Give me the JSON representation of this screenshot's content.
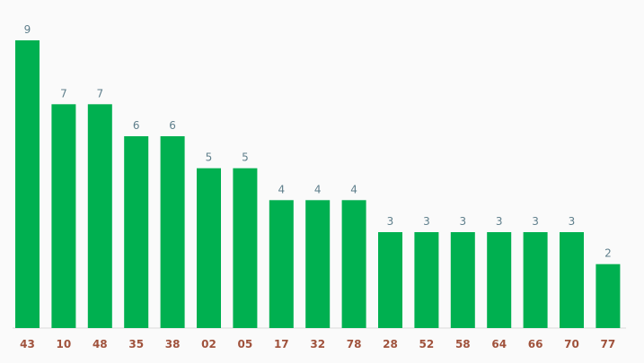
{
  "chart_data": {
    "type": "bar",
    "categories": [
      "43",
      "10",
      "48",
      "35",
      "38",
      "02",
      "05",
      "17",
      "32",
      "78",
      "28",
      "52",
      "58",
      "64",
      "66",
      "70",
      "77"
    ],
    "values": [
      9,
      7,
      7,
      6,
      6,
      5,
      5,
      4,
      4,
      4,
      3,
      3,
      3,
      3,
      3,
      3,
      2
    ],
    "ylim": [
      0,
      9
    ],
    "grid": false,
    "legend": "none",
    "colors": {
      "bar": "#00b050",
      "value_label": "#5f7f8c",
      "category_label": "#a0523c",
      "background": "#fafafa"
    }
  }
}
